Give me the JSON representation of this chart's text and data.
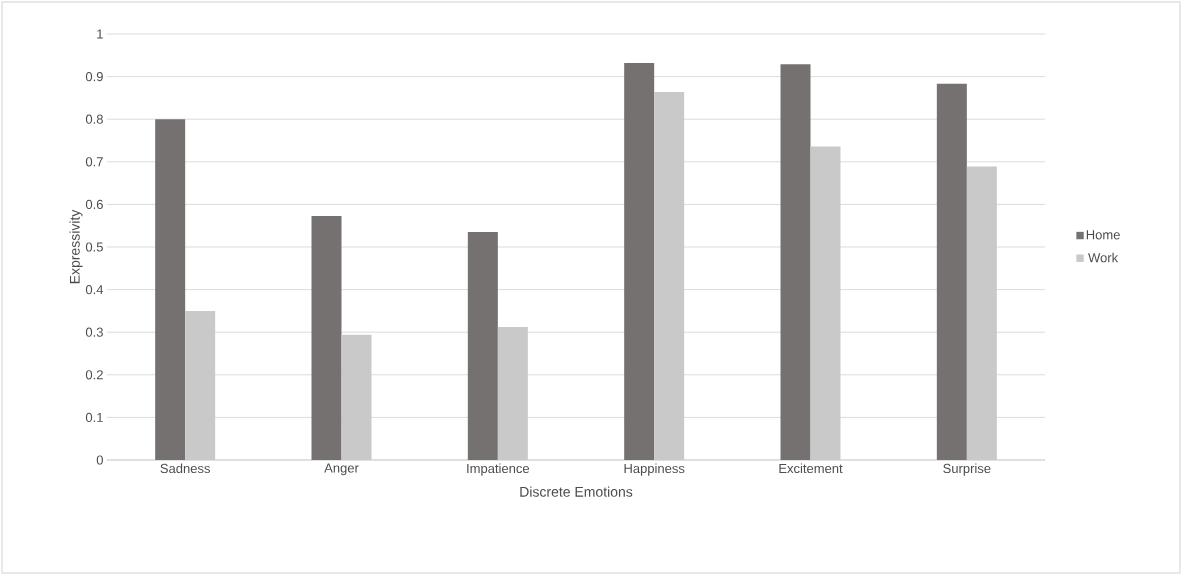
{
  "chart_data": {
    "type": "bar",
    "xlabel": "Discrete Emotions",
    "ylabel": "Expressivity",
    "categories": [
      "Sadness",
      "Anger",
      "Impatience",
      "Happiness",
      "Excitement",
      "Surprise"
    ],
    "series": [
      {
        "name": "Home",
        "color": "#767171",
        "values": [
          0.8,
          0.573,
          0.535,
          0.932,
          0.929,
          0.883
        ]
      },
      {
        "name": "Work",
        "color": "#c9c9c9",
        "values": [
          0.35,
          0.294,
          0.312,
          0.864,
          0.736,
          0.689
        ]
      }
    ],
    "ylim": [
      0,
      1
    ],
    "yticks": [
      0,
      0.1,
      0.2,
      0.3,
      0.4,
      0.5,
      0.6,
      0.7,
      0.8,
      0.9,
      1
    ],
    "grid": "y",
    "legend": "right"
  }
}
